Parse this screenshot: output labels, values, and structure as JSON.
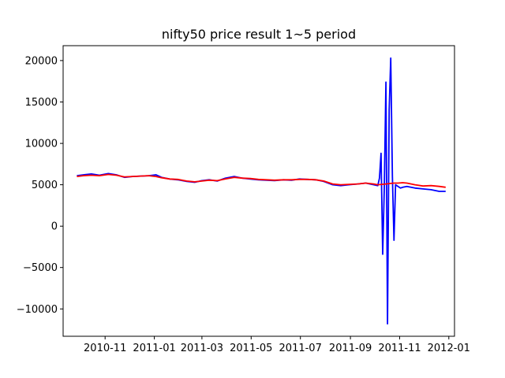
{
  "chart_data": {
    "type": "line",
    "title": "nifty50 price result 1~5 period",
    "xlabel": "",
    "ylabel": "",
    "x_type": "date",
    "xlim": [
      "2010-09-10",
      "2012-01-08"
    ],
    "ylim": [
      -13300,
      21800
    ],
    "x_ticks": [
      "2010-11",
      "2011-01",
      "2011-03",
      "2011-05",
      "2011-07",
      "2011-09",
      "2011-11",
      "2012-01"
    ],
    "x_tick_labels": [
      "2010-11",
      "2011-01",
      "2011-03",
      "2011-05",
      "2011-07",
      "2011-09",
      "2011-11",
      "2012-01"
    ],
    "y_ticks": [
      -10000,
      -5000,
      0,
      5000,
      10000,
      15000,
      20000
    ],
    "y_tick_labels": [
      "−10000",
      "−5000",
      "0",
      "5000",
      "10000",
      "15000",
      "20000"
    ],
    "grid": false,
    "legend": "none",
    "series": [
      {
        "color": "#0000ff",
        "x": [
          "2010-09-27",
          "2010-10-05",
          "2010-10-15",
          "2010-10-25",
          "2010-11-05",
          "2010-11-15",
          "2010-11-25",
          "2010-12-05",
          "2010-12-15",
          "2010-12-25",
          "2011-01-03",
          "2011-01-10",
          "2011-01-20",
          "2011-01-30",
          "2011-02-10",
          "2011-02-20",
          "2011-03-01",
          "2011-03-10",
          "2011-03-20",
          "2011-03-30",
          "2011-04-10",
          "2011-04-20",
          "2011-04-30",
          "2011-05-10",
          "2011-05-20",
          "2011-05-30",
          "2011-06-10",
          "2011-06-20",
          "2011-06-30",
          "2011-07-10",
          "2011-07-20",
          "2011-07-30",
          "2011-08-10",
          "2011-08-20",
          "2011-08-30",
          "2011-09-10",
          "2011-09-20",
          "2011-09-30",
          "2011-10-05",
          "2011-10-07",
          "2011-10-09",
          "2011-10-11",
          "2011-10-13",
          "2011-10-15",
          "2011-10-17",
          "2011-10-19",
          "2011-10-21",
          "2011-10-23",
          "2011-10-25",
          "2011-10-27",
          "2011-10-30",
          "2011-11-02",
          "2011-11-05",
          "2011-11-10",
          "2011-11-20",
          "2011-11-30",
          "2011-12-10",
          "2011-12-20",
          "2011-12-28"
        ],
        "y": [
          6100,
          6200,
          6300,
          6150,
          6350,
          6200,
          5900,
          6000,
          6050,
          6100,
          6200,
          5900,
          5700,
          5600,
          5400,
          5300,
          5500,
          5600,
          5450,
          5800,
          6000,
          5800,
          5700,
          5600,
          5550,
          5500,
          5600,
          5550,
          5700,
          5650,
          5600,
          5400,
          5000,
          4900,
          5000,
          5100,
          5200,
          5000,
          4900,
          5800,
          8800,
          -3400,
          4500,
          17400,
          -11800,
          14000,
          20300,
          6000,
          -1700,
          5000,
          4800,
          4600,
          4700,
          4800,
          4600,
          4500,
          4400,
          4200,
          4200
        ]
      },
      {
        "color": "#ff0000",
        "x": [
          "2010-09-27",
          "2010-10-05",
          "2010-10-15",
          "2010-10-25",
          "2010-11-05",
          "2010-11-15",
          "2010-11-25",
          "2010-12-05",
          "2010-12-15",
          "2010-12-25",
          "2011-01-03",
          "2011-01-10",
          "2011-01-20",
          "2011-01-30",
          "2011-02-10",
          "2011-02-20",
          "2011-03-01",
          "2011-03-10",
          "2011-03-20",
          "2011-03-30",
          "2011-04-10",
          "2011-04-20",
          "2011-04-30",
          "2011-05-10",
          "2011-05-20",
          "2011-05-30",
          "2011-06-10",
          "2011-06-20",
          "2011-06-30",
          "2011-07-10",
          "2011-07-20",
          "2011-07-30",
          "2011-08-10",
          "2011-08-20",
          "2011-08-30",
          "2011-09-10",
          "2011-09-20",
          "2011-09-30",
          "2011-10-05",
          "2011-10-10",
          "2011-10-15",
          "2011-10-20",
          "2011-10-25",
          "2011-10-30",
          "2011-11-05",
          "2011-11-10",
          "2011-11-20",
          "2011-11-30",
          "2011-12-10",
          "2011-12-20",
          "2011-12-28"
        ],
        "y": [
          6000,
          6100,
          6150,
          6100,
          6250,
          6150,
          5950,
          6000,
          6050,
          6100,
          6000,
          5850,
          5700,
          5650,
          5450,
          5350,
          5450,
          5550,
          5500,
          5700,
          5900,
          5800,
          5750,
          5650,
          5600,
          5550,
          5600,
          5600,
          5650,
          5650,
          5600,
          5450,
          5100,
          5000,
          5050,
          5100,
          5200,
          5100,
          5000,
          5050,
          5100,
          5150,
          5200,
          5200,
          5250,
          5200,
          5000,
          4850,
          4900,
          4800,
          4700
        ]
      }
    ]
  }
}
